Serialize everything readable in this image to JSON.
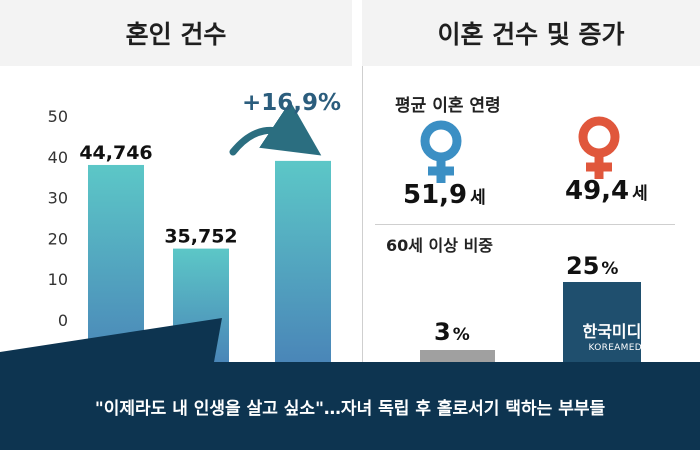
{
  "left_panel": {
    "title": "혼인 건수",
    "growth_label": "+16,9%"
  },
  "right_panel": {
    "title": "이혼 건수 및 증가",
    "avg_age": {
      "title": "평균 이혼 연령",
      "female": {
        "value": "51,9",
        "unit": "세",
        "color": "#3b8fc4"
      },
      "male": {
        "value": "49,4",
        "unit": "세",
        "color": "#e0573c"
      }
    },
    "over60_share": {
      "title": "60세 이상 비중",
      "bars": [
        {
          "value": 3,
          "label": "3",
          "unit": "%",
          "color": "#a0a0a0"
        },
        {
          "value": 25,
          "label": "25",
          "unit": "%",
          "color": "#1f4f6e"
        }
      ]
    }
  },
  "chart_data": {
    "type": "bar",
    "title": "혼인 건수",
    "categories": [
      "",
      "",
      ""
    ],
    "values": [
      38,
      17.5,
      39
    ],
    "bar_labels": [
      "44,746",
      "35,752",
      ""
    ],
    "yticks": [
      0,
      10,
      20,
      30,
      40,
      50
    ],
    "ylim": [
      0,
      50
    ],
    "annotation": "+16,9%",
    "grid": false,
    "bar_color_top": "#5cc7c7",
    "bar_color_bottom": "#4a86b8"
  },
  "watermark": {
    "line1": "한국미디어일보",
    "line2": "KOREAMEDIATIMES"
  },
  "caption": "\"이제라도 내 인생을 살고 싶소\"…자녀 독립 후 홀로서기 택하는 부부들"
}
